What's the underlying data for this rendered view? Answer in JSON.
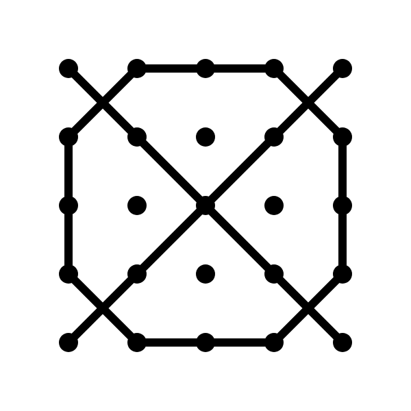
{
  "diagram": {
    "type": "dot-grid-pattern",
    "grid": {
      "rows": 5,
      "columns": 5
    },
    "colors": {
      "background": "#ffffff",
      "ink": "#000000"
    },
    "dots": [
      [
        0,
        0
      ],
      [
        1,
        0
      ],
      [
        2,
        0
      ],
      [
        3,
        0
      ],
      [
        4,
        0
      ],
      [
        0,
        1
      ],
      [
        1,
        1
      ],
      [
        2,
        1
      ],
      [
        3,
        1
      ],
      [
        4,
        1
      ],
      [
        0,
        2
      ],
      [
        1,
        2
      ],
      [
        2,
        2
      ],
      [
        3,
        2
      ],
      [
        4,
        2
      ],
      [
        0,
        3
      ],
      [
        1,
        3
      ],
      [
        2,
        3
      ],
      [
        3,
        3
      ],
      [
        4,
        3
      ],
      [
        0,
        4
      ],
      [
        1,
        4
      ],
      [
        2,
        4
      ],
      [
        3,
        4
      ],
      [
        4,
        4
      ]
    ],
    "segments": [
      {
        "name": "octagon-top-edge",
        "from": [
          1,
          0
        ],
        "to": [
          3,
          0
        ]
      },
      {
        "name": "octagon-top-right-edge",
        "from": [
          3,
          0
        ],
        "to": [
          4,
          1
        ]
      },
      {
        "name": "octagon-right-edge",
        "from": [
          4,
          1
        ],
        "to": [
          4,
          3
        ]
      },
      {
        "name": "octagon-bottom-right-edge",
        "from": [
          4,
          3
        ],
        "to": [
          3,
          4
        ]
      },
      {
        "name": "octagon-bottom-edge",
        "from": [
          3,
          4
        ],
        "to": [
          1,
          4
        ]
      },
      {
        "name": "octagon-bottom-left-edge",
        "from": [
          1,
          4
        ],
        "to": [
          0,
          3
        ]
      },
      {
        "name": "octagon-left-edge",
        "from": [
          0,
          3
        ],
        "to": [
          0,
          1
        ]
      },
      {
        "name": "octagon-top-left-edge",
        "from": [
          0,
          1
        ],
        "to": [
          1,
          0
        ]
      },
      {
        "name": "main-diagonal",
        "from": [
          0,
          0
        ],
        "to": [
          4,
          4
        ]
      },
      {
        "name": "anti-diagonal",
        "from": [
          4,
          0
        ],
        "to": [
          0,
          4
        ]
      }
    ]
  }
}
